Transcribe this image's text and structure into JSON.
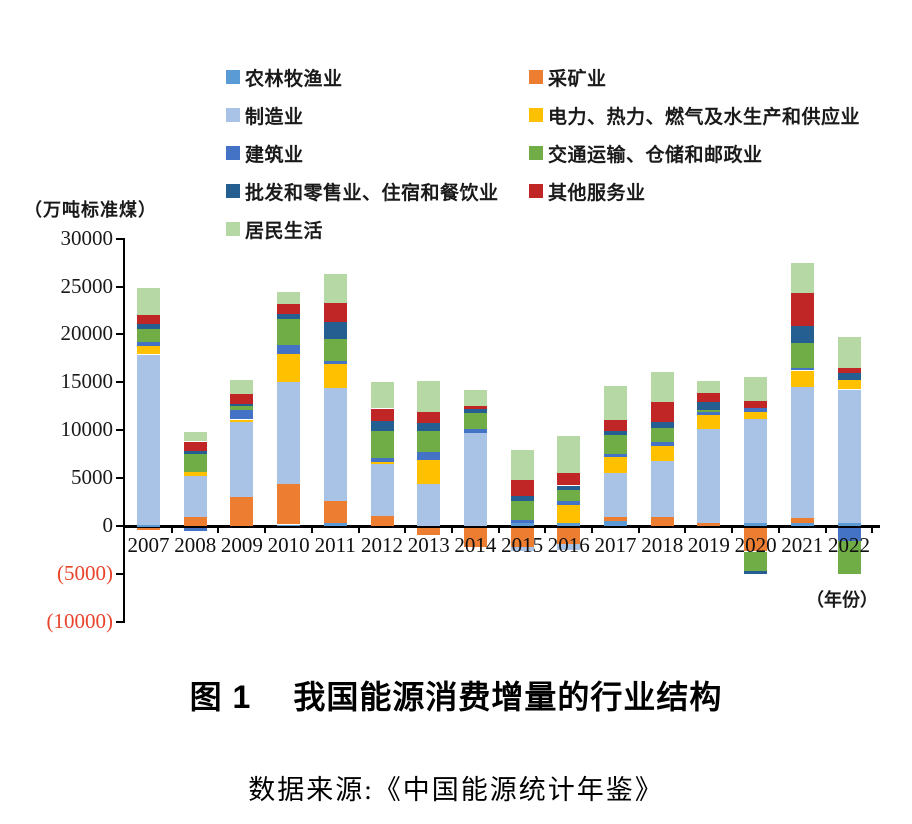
{
  "figure_caption": {
    "prefix": "图 1",
    "text": "我国能源消费增量的行业结构"
  },
  "source_line": "数据来源:《中国能源统计年鉴》",
  "axis": {
    "unit_label": "（万吨标准煤）",
    "x_note": "（年份）",
    "y_ticks": [
      {
        "label": "30000",
        "value": 30000,
        "color": "#1a1a1a"
      },
      {
        "label": "25000",
        "value": 25000,
        "color": "#1a1a1a"
      },
      {
        "label": "20000",
        "value": 20000,
        "color": "#1a1a1a"
      },
      {
        "label": "15000",
        "value": 15000,
        "color": "#1a1a1a"
      },
      {
        "label": "10000",
        "value": 10000,
        "color": "#1a1a1a"
      },
      {
        "label": "5000",
        "value": 5000,
        "color": "#1a1a1a"
      },
      {
        "label": "0",
        "value": 0,
        "color": "#1a1a1a"
      },
      {
        "label": "(5000)",
        "value": -5000,
        "color": "#E8442A"
      },
      {
        "label": "(10000)",
        "value": -10000,
        "color": "#E8442A"
      }
    ]
  },
  "chart_data": {
    "type": "bar",
    "stacked": true,
    "title": "我国能源消费增量的行业结构",
    "unit": "万吨标准煤",
    "xlabel": "年份",
    "ylim": [
      -10000,
      30000
    ],
    "grid": false,
    "legend_position": "top",
    "categories": [
      "2007",
      "2008",
      "2009",
      "2010",
      "2011",
      "2012",
      "2013",
      "2014",
      "2015",
      "2016",
      "2017",
      "2018",
      "2019",
      "2020",
      "2021",
      "2022"
    ],
    "series": [
      {
        "key": "agriculture",
        "name": "农林牧渔业",
        "color": "#5B9BD5",
        "values": [
          100,
          0,
          0,
          150,
          300,
          0,
          0,
          0,
          300,
          280,
          550,
          0,
          0,
          300,
          280,
          350
        ]
      },
      {
        "key": "mining",
        "name": "采矿业",
        "color": "#ED7D31",
        "values": [
          -300,
          900,
          3000,
          4250,
          2350,
          1050,
          -800,
          -2000,
          -2000,
          -1750,
          350,
          980,
          310,
          -2500,
          600,
          0
        ]
      },
      {
        "key": "manufacturing",
        "name": "制造业",
        "color": "#A9C3E6",
        "values": [
          17800,
          4300,
          7840,
          10650,
          11750,
          5500,
          4370,
          9700,
          -500,
          -600,
          4600,
          5770,
          9800,
          10900,
          13600,
          13900
        ]
      },
      {
        "key": "power-heat-gas-water",
        "name": "电力、热力、燃气及水生产和供应业",
        "color": "#FFC000",
        "values": [
          870,
          420,
          280,
          2900,
          2550,
          100,
          2480,
          0,
          0,
          1960,
          1750,
          1640,
          1470,
          700,
          1750,
          980
        ]
      },
      {
        "key": "construction",
        "name": "建筑业",
        "color": "#4472C4",
        "values": [
          460,
          -400,
          980,
          950,
          280,
          420,
          840,
          420,
          300,
          350,
          280,
          350,
          280,
          450,
          250,
          -1400
        ]
      },
      {
        "key": "transport-storage-post",
        "name": "交通运输、仓储和邮政业",
        "color": "#70AD47",
        "values": [
          1360,
          1900,
          390,
          2750,
          2300,
          2900,
          2200,
          1640,
          2000,
          1220,
          2000,
          1500,
          280,
          -2000,
          2600,
          -3500
        ]
      },
      {
        "key": "wholesale-retail-hotel-catering",
        "name": "批发和零售业、住宿和餐饮业",
        "color": "#255E91",
        "values": [
          455,
          350,
          280,
          460,
          1770,
          990,
          870,
          420,
          520,
          420,
          350,
          600,
          770,
          -400,
          1800,
          700
        ]
      },
      {
        "key": "other-services",
        "name": "其他服务业",
        "color": "#C02626",
        "values": [
          940,
          950,
          980,
          1060,
          1940,
          1300,
          1100,
          350,
          1680,
          1330,
          1200,
          2100,
          980,
          660,
          3400,
          600
        ]
      },
      {
        "key": "residential",
        "name": "居民生活",
        "color": "#B5D8A4",
        "values": [
          2830,
          950,
          1500,
          1300,
          3070,
          2750,
          3250,
          1680,
          3150,
          3850,
          3500,
          3100,
          1300,
          2550,
          3200,
          3200
        ]
      }
    ]
  },
  "legend": {
    "order": [
      {
        "series": 0,
        "col": 1
      },
      {
        "series": 1,
        "col": 2
      },
      {
        "series": 2,
        "col": 1
      },
      {
        "series": 3,
        "col": 2
      },
      {
        "series": 4,
        "col": 1
      },
      {
        "series": 5,
        "col": 2
      },
      {
        "series": 6,
        "col": 1
      },
      {
        "series": 7,
        "col": 2
      },
      {
        "series": 8,
        "col": 1
      }
    ]
  }
}
